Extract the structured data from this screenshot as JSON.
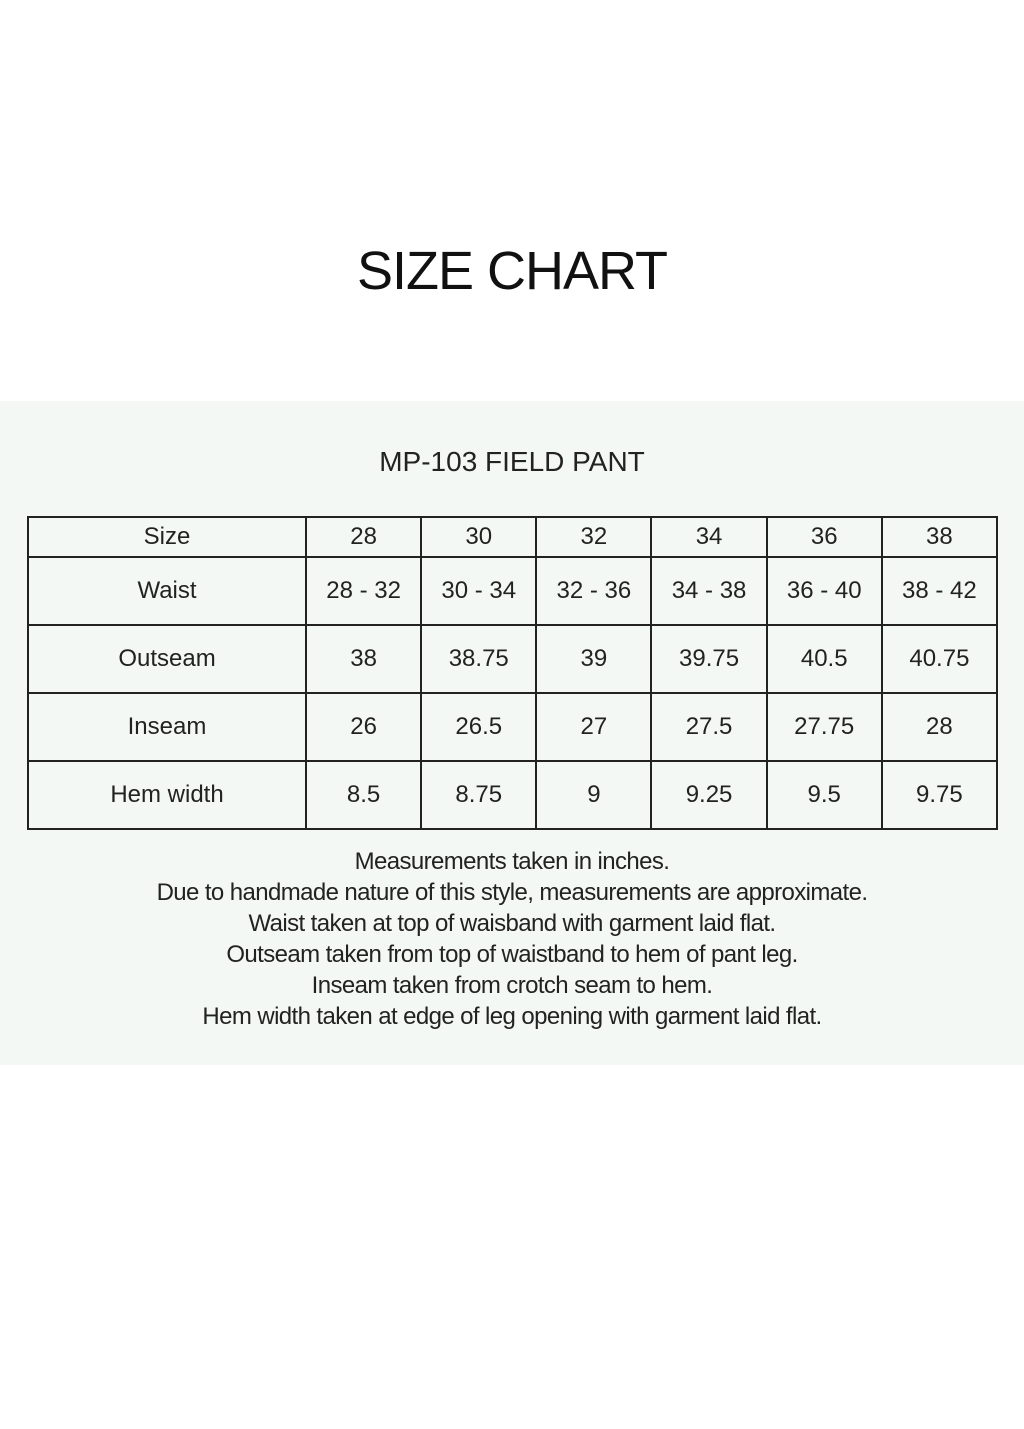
{
  "title": "SIZE CHART",
  "subtitle": "MP-103 FIELD PANT",
  "table": {
    "header": [
      "Size",
      "28",
      "30",
      "32",
      "34",
      "36",
      "38"
    ],
    "rows": [
      [
        "Waist",
        "28 - 32",
        "30 - 34",
        "32 - 36",
        "34 - 38",
        "36 - 40",
        "38 - 42"
      ],
      [
        "Outseam",
        "38",
        "38.75",
        "39",
        "39.75",
        "40.5",
        "40.75"
      ],
      [
        "Inseam",
        "26",
        "26.5",
        "27",
        "27.5",
        "27.75",
        "28"
      ],
      [
        "Hem width",
        "8.5",
        "8.75",
        "9",
        "9.25",
        "9.5",
        "9.75"
      ]
    ]
  },
  "notes": [
    "Measurements taken in inches.",
    "Due to handmade nature of this style, measurements are approximate.",
    "Waist taken at top of waisband with garment laid flat.",
    "Outseam taken from top of waistband to hem of pant leg.",
    "Inseam taken from crotch seam to hem.",
    "Hem width taken at edge of leg opening with garment laid flat."
  ],
  "colors": {
    "panel_background": "#f3f8f5",
    "border": "#222222"
  }
}
